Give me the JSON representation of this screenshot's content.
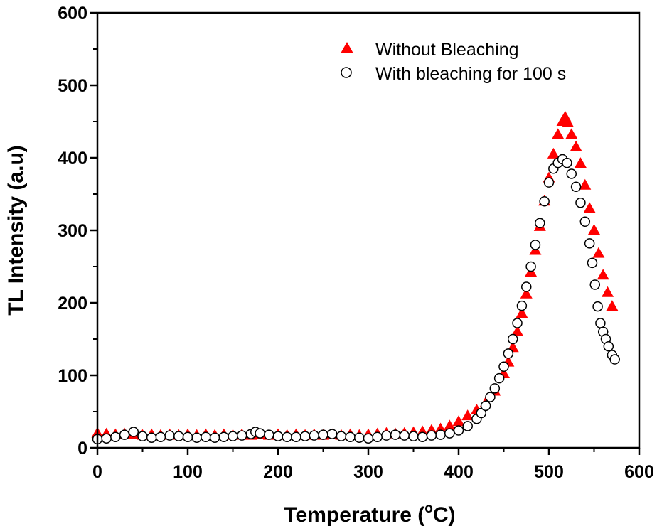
{
  "chart_data": {
    "type": "scatter",
    "xlabel": "Temperature (",
    "xlabel_sup": "o",
    "xlabel_unit": "C)",
    "ylabel": "TL Intensity (a.u)",
    "xlim": [
      0,
      600
    ],
    "ylim": [
      0,
      600
    ],
    "xticks": [
      "0",
      "100",
      "200",
      "300",
      "400",
      "500",
      "600"
    ],
    "yticks": [
      "0",
      "100",
      "200",
      "300",
      "400",
      "500",
      "600"
    ],
    "grid": false,
    "legend_position": "top-right",
    "series": [
      {
        "name": "Without Bleaching",
        "marker": "filled-triangle",
        "color": "#ff0000",
        "x": [
          0,
          10,
          20,
          30,
          40,
          50,
          60,
          70,
          80,
          90,
          100,
          110,
          120,
          130,
          140,
          150,
          160,
          170,
          180,
          190,
          200,
          210,
          220,
          230,
          240,
          250,
          260,
          270,
          280,
          290,
          300,
          310,
          320,
          330,
          340,
          350,
          360,
          370,
          380,
          390,
          400,
          410,
          420,
          430,
          440,
          450,
          455,
          460,
          465,
          470,
          475,
          480,
          485,
          490,
          495,
          500,
          505,
          510,
          515,
          518,
          521,
          525,
          530,
          535,
          540,
          545,
          550,
          555,
          560,
          565,
          570
        ],
        "y": [
          20,
          19,
          18,
          19,
          18,
          17,
          18,
          17,
          18,
          17,
          18,
          17,
          18,
          17,
          18,
          17,
          18,
          17,
          18,
          17,
          18,
          17,
          18,
          17,
          18,
          17,
          18,
          17,
          18,
          17,
          18,
          19,
          20,
          19,
          20,
          21,
          22,
          24,
          26,
          30,
          36,
          44,
          52,
          62,
          78,
          102,
          118,
          138,
          160,
          185,
          212,
          242,
          272,
          305,
          340,
          372,
          405,
          432,
          450,
          456,
          448,
          432,
          415,
          392,
          362,
          330,
          300,
          268,
          238,
          214,
          195
        ]
      },
      {
        "name": "With bleaching for 100 s",
        "marker": "open-circle",
        "color": "#000000",
        "x": [
          0,
          10,
          20,
          30,
          40,
          50,
          60,
          70,
          80,
          90,
          100,
          110,
          120,
          130,
          140,
          150,
          160,
          170,
          175,
          180,
          190,
          200,
          210,
          220,
          230,
          240,
          250,
          260,
          270,
          280,
          290,
          300,
          310,
          320,
          330,
          340,
          350,
          360,
          370,
          380,
          390,
          400,
          410,
          420,
          425,
          430,
          435,
          440,
          445,
          450,
          455,
          460,
          465,
          470,
          475,
          480,
          485,
          490,
          495,
          500,
          505,
          510,
          515,
          520,
          525,
          530,
          535,
          540,
          545,
          548,
          551,
          554,
          557,
          560,
          563,
          566,
          570,
          573
        ],
        "y": [
          12,
          13,
          15,
          18,
          22,
          16,
          14,
          15,
          17,
          16,
          15,
          14,
          15,
          14,
          15,
          16,
          17,
          19,
          22,
          20,
          18,
          16,
          15,
          15,
          16,
          17,
          18,
          19,
          16,
          15,
          14,
          13,
          15,
          17,
          18,
          17,
          16,
          15,
          17,
          18,
          20,
          24,
          30,
          40,
          48,
          58,
          70,
          82,
          96,
          112,
          130,
          150,
          172,
          196,
          222,
          250,
          280,
          310,
          340,
          366,
          385,
          393,
          398,
          393,
          378,
          360,
          338,
          312,
          282,
          255,
          225,
          195,
          172,
          160,
          150,
          140,
          128,
          122
        ]
      }
    ]
  }
}
